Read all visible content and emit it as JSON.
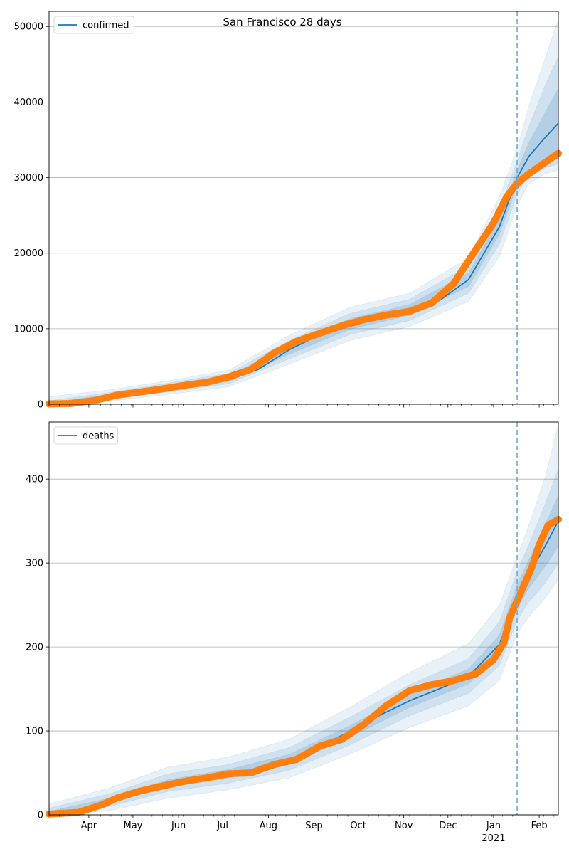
{
  "figure": {
    "title": "San Francisco 28 days"
  },
  "colors": {
    "model": "#1f77b4",
    "observed": "#ff7f0e",
    "band": "#1f77b4",
    "grid": "#b0b0b0",
    "cutoff": "#6fa8d0"
  },
  "x_axis": {
    "ticks": [
      {
        "date": "2020-04-01",
        "label": "Apr"
      },
      {
        "date": "2020-05-01",
        "label": "May"
      },
      {
        "date": "2020-06-01",
        "label": "Jun"
      },
      {
        "date": "2020-07-01",
        "label": "Jul"
      },
      {
        "date": "2020-08-01",
        "label": "Aug"
      },
      {
        "date": "2020-09-01",
        "label": "Sep"
      },
      {
        "date": "2020-10-01",
        "label": "Oct"
      },
      {
        "date": "2020-11-01",
        "label": "Nov"
      },
      {
        "date": "2020-12-01",
        "label": "Dec"
      },
      {
        "date": "2021-01-01",
        "label": "Jan"
      },
      {
        "date": "2021-02-01",
        "label": "Feb"
      }
    ],
    "year_label": "2021"
  },
  "chart_data": [
    {
      "type": "line",
      "title": "San Francisco 28 days",
      "legend": [
        "confirmed"
      ],
      "legend_position": "top-left",
      "grid": "y",
      "xlim": [
        "2020-03-05",
        "2021-02-14"
      ],
      "ylim": [
        0,
        52000
      ],
      "yticks": [
        0,
        10000,
        20000,
        30000,
        40000,
        50000
      ],
      "cutoff_date": "2021-01-17",
      "series": [
        {
          "name": "confirmed",
          "kind": "model",
          "x": [
            "2020-03-05",
            "2020-03-25",
            "2020-04-15",
            "2020-05-05",
            "2020-05-25",
            "2020-06-15",
            "2020-07-05",
            "2020-07-25",
            "2020-08-15",
            "2020-09-05",
            "2020-09-25",
            "2020-10-15",
            "2020-11-05",
            "2020-11-25",
            "2020-12-15",
            "2021-01-05",
            "2021-01-17",
            "2021-01-25",
            "2021-02-05",
            "2021-02-14"
          ],
          "values": [
            50,
            300,
            1100,
            1600,
            2200,
            2700,
            3300,
            4600,
            7200,
            9200,
            10600,
            11600,
            12500,
            13700,
            16500,
            23500,
            30000,
            32800,
            35300,
            37200
          ]
        },
        {
          "name": "",
          "kind": "observed",
          "x": [
            "2020-03-05",
            "2020-03-20",
            "2020-04-05",
            "2020-04-20",
            "2020-05-05",
            "2020-05-20",
            "2020-06-05",
            "2020-06-20",
            "2020-07-05",
            "2020-07-20",
            "2020-08-05",
            "2020-08-20",
            "2020-09-05",
            "2020-09-20",
            "2020-10-05",
            "2020-10-20",
            "2020-11-05",
            "2020-11-20",
            "2020-12-05",
            "2020-12-20",
            "2021-01-01",
            "2021-01-10",
            "2021-01-17",
            "2021-01-25",
            "2021-02-05",
            "2021-02-14"
          ],
          "values": [
            50,
            100,
            500,
            1200,
            1600,
            2000,
            2500,
            2900,
            3600,
            4600,
            6800,
            8300,
            9400,
            10400,
            11200,
            11800,
            12300,
            13400,
            16000,
            20500,
            24000,
            27500,
            29200,
            30500,
            32000,
            33200
          ]
        }
      ],
      "bands": {
        "x": [
          "2020-03-05",
          "2020-04-15",
          "2020-05-25",
          "2020-07-05",
          "2020-08-15",
          "2020-09-25",
          "2020-11-05",
          "2020-12-15",
          "2021-01-05",
          "2021-01-17",
          "2021-01-25",
          "2021-02-05",
          "2021-02-14"
        ],
        "inner": [
          [
            0,
            200
          ],
          [
            900,
            1300
          ],
          [
            1900,
            2500
          ],
          [
            3000,
            3700
          ],
          [
            6600,
            7800
          ],
          [
            9900,
            11300
          ],
          [
            11800,
            13200
          ],
          [
            15600,
            17400
          ],
          [
            22500,
            24500
          ],
          [
            29000,
            31000
          ],
          [
            31200,
            34600
          ],
          [
            32300,
            38600
          ],
          [
            33200,
            41800
          ]
        ],
        "middle": [
          [
            0,
            450
          ],
          [
            700,
            1550
          ],
          [
            1650,
            2800
          ],
          [
            2700,
            4100
          ],
          [
            6000,
            8400
          ],
          [
            9200,
            12000
          ],
          [
            11100,
            13900
          ],
          [
            14700,
            18300
          ],
          [
            21200,
            25800
          ],
          [
            27800,
            32200
          ],
          [
            30300,
            36800
          ],
          [
            31300,
            42200
          ],
          [
            31800,
            46000
          ]
        ],
        "outer": [
          [
            0,
            1000
          ],
          [
            400,
            1900
          ],
          [
            1300,
            3100
          ],
          [
            2300,
            4500
          ],
          [
            5300,
            9100
          ],
          [
            8400,
            12800
          ],
          [
            10300,
            14700
          ],
          [
            13600,
            19400
          ],
          [
            19500,
            27500
          ],
          [
            26300,
            33800
          ],
          [
            29200,
            39500
          ],
          [
            30500,
            45800
          ],
          [
            31000,
            51000
          ]
        ]
      }
    },
    {
      "type": "line",
      "legend": [
        "deaths"
      ],
      "legend_position": "top-left",
      "grid": "y",
      "xlim": [
        "2020-03-05",
        "2021-02-14"
      ],
      "ylim": [
        0,
        468
      ],
      "yticks": [
        0,
        100,
        200,
        300,
        400
      ],
      "cutoff_date": "2021-01-17",
      "series": [
        {
          "name": "deaths",
          "kind": "model",
          "x": [
            "2020-03-05",
            "2020-03-25",
            "2020-04-15",
            "2020-05-05",
            "2020-05-25",
            "2020-06-15",
            "2020-07-05",
            "2020-07-25",
            "2020-08-15",
            "2020-09-05",
            "2020-09-25",
            "2020-10-15",
            "2020-11-05",
            "2020-11-25",
            "2020-12-15",
            "2021-01-05",
            "2021-01-17",
            "2021-01-25",
            "2021-02-05",
            "2021-02-14"
          ],
          "values": [
            1,
            4,
            17,
            30,
            38,
            44,
            49,
            55,
            66,
            82,
            99,
            118,
            136,
            150,
            165,
            203,
            260,
            287,
            320,
            350
          ]
        },
        {
          "name": "",
          "kind": "observed",
          "x": [
            "2020-03-05",
            "2020-03-25",
            "2020-04-10",
            "2020-04-20",
            "2020-05-05",
            "2020-05-20",
            "2020-06-05",
            "2020-06-20",
            "2020-07-05",
            "2020-07-20",
            "2020-08-05",
            "2020-08-20",
            "2020-09-05",
            "2020-09-20",
            "2020-10-05",
            "2020-10-20",
            "2020-11-05",
            "2020-11-20",
            "2020-12-05",
            "2020-12-20",
            "2021-01-01",
            "2021-01-08",
            "2021-01-12",
            "2021-01-17",
            "2021-01-22",
            "2021-01-27",
            "2021-02-01",
            "2021-02-07",
            "2021-02-14"
          ],
          "values": [
            1,
            3,
            12,
            20,
            28,
            34,
            40,
            44,
            49,
            50,
            60,
            66,
            82,
            90,
            108,
            130,
            148,
            155,
            160,
            168,
            185,
            205,
            235,
            255,
            275,
            295,
            322,
            345,
            352
          ]
        }
      ],
      "bands": {
        "x": [
          "2020-03-05",
          "2020-04-15",
          "2020-05-25",
          "2020-07-05",
          "2020-08-15",
          "2020-09-25",
          "2020-11-05",
          "2020-12-15",
          "2021-01-05",
          "2021-01-17",
          "2021-01-25",
          "2021-02-05",
          "2021-02-14"
        ],
        "inner": [
          [
            0,
            4
          ],
          [
            14,
            20
          ],
          [
            34,
            42
          ],
          [
            44,
            54
          ],
          [
            60,
            72
          ],
          [
            92,
            106
          ],
          [
            128,
            144
          ],
          [
            156,
            174
          ],
          [
            192,
            214
          ],
          [
            246,
            274
          ],
          [
            270,
            304
          ],
          [
            296,
            346
          ],
          [
            320,
            380
          ]
        ],
        "middle": [
          [
            0,
            8
          ],
          [
            10,
            25
          ],
          [
            28,
            49
          ],
          [
            38,
            60
          ],
          [
            53,
            80
          ],
          [
            83,
            116
          ],
          [
            118,
            155
          ],
          [
            145,
            186
          ],
          [
            178,
            230
          ],
          [
            232,
            290
          ],
          [
            254,
            322
          ],
          [
            276,
            370
          ],
          [
            300,
            412
          ]
        ],
        "outer": [
          [
            0,
            13
          ],
          [
            5,
            32
          ],
          [
            20,
            57
          ],
          [
            30,
            69
          ],
          [
            44,
            90
          ],
          [
            72,
            128
          ],
          [
            104,
            170
          ],
          [
            130,
            204
          ],
          [
            160,
            250
          ],
          [
            216,
            308
          ],
          [
            236,
            345
          ],
          [
            258,
            402
          ],
          [
            280,
            465
          ]
        ]
      }
    }
  ]
}
